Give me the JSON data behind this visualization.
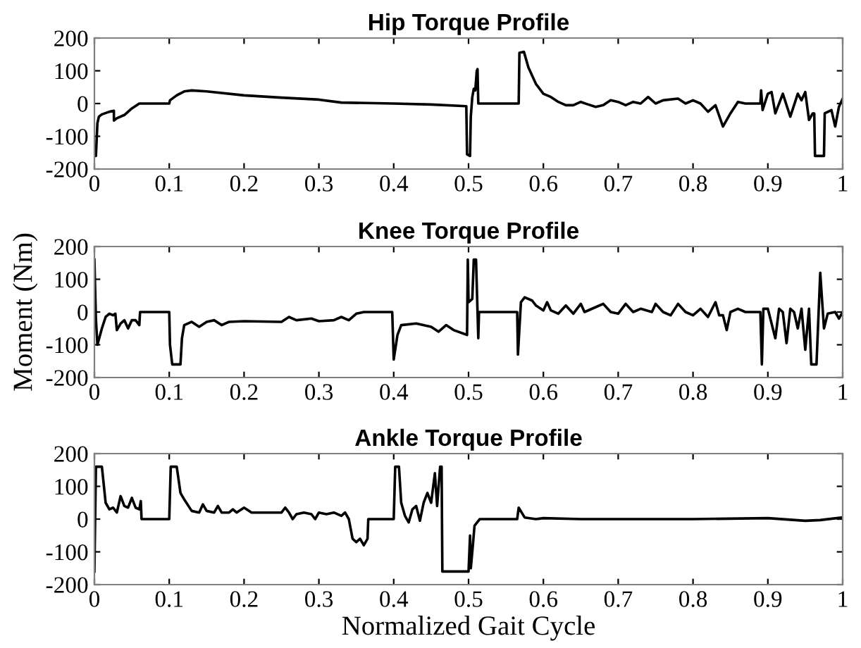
{
  "chart_data": [
    {
      "type": "line",
      "title": "Hip Torque Profile",
      "xlim": [
        0,
        1
      ],
      "xticks": [
        0,
        0.1,
        0.2,
        0.3,
        0.4,
        0.5,
        0.6,
        0.7,
        0.8,
        0.9,
        1
      ],
      "ylim": [
        -200,
        200
      ],
      "yticks": [
        -200,
        -100,
        0,
        100,
        200
      ],
      "grid": false,
      "marker": "none",
      "line_style": "solid",
      "series": [
        {
          "color": "#000000",
          "x": [
            0,
            0.002,
            0.004,
            0.006,
            0.01,
            0.02,
            0.026,
            0.0261,
            0.03,
            0.04,
            0.05,
            0.06,
            0.1,
            0.101,
            0.11,
            0.12,
            0.13,
            0.15,
            0.2,
            0.25,
            0.3,
            0.33,
            0.4,
            0.45,
            0.497,
            0.498,
            0.502,
            0.503,
            0.505,
            0.507,
            0.509,
            0.511,
            0.512,
            0.513,
            0.567,
            0.568,
            0.574,
            0.58,
            0.59,
            0.6,
            0.61,
            0.62,
            0.63,
            0.64,
            0.65,
            0.66,
            0.67,
            0.68,
            0.69,
            0.7,
            0.71,
            0.72,
            0.73,
            0.74,
            0.75,
            0.76,
            0.78,
            0.79,
            0.8,
            0.81,
            0.82,
            0.83,
            0.84,
            0.85,
            0.86,
            0.87,
            0.89,
            0.891,
            0.893,
            0.9,
            0.905,
            0.91,
            0.92,
            0.93,
            0.94,
            0.945,
            0.95,
            0.955,
            0.96,
            0.962,
            0.963,
            0.975,
            0.976,
            0.985,
            0.99,
            0.995,
            1
          ],
          "values": [
            -160,
            -160,
            -60,
            -40,
            -33,
            -25,
            -22,
            -52,
            -45,
            -35,
            -15,
            0,
            0,
            10,
            25,
            37,
            40,
            37,
            25,
            18,
            12,
            3,
            0,
            -3,
            -8,
            -155,
            -160,
            -40,
            20,
            45,
            40,
            100,
            105,
            0,
            0,
            155,
            158,
            110,
            60,
            30,
            20,
            5,
            -5,
            -5,
            5,
            -3,
            -10,
            -5,
            10,
            5,
            -5,
            5,
            0,
            20,
            0,
            10,
            15,
            0,
            10,
            0,
            -25,
            -5,
            -70,
            -30,
            5,
            0,
            0,
            40,
            -20,
            30,
            35,
            -30,
            30,
            -40,
            30,
            10,
            35,
            -50,
            -30,
            -30,
            -160,
            -160,
            -30,
            -20,
            -70,
            -10,
            15
          ]
        }
      ]
    },
    {
      "type": "line",
      "title": "Knee Torque Profile",
      "ylabel": "Moment (Nm)",
      "xlim": [
        0,
        1
      ],
      "xticks": [
        0,
        0.1,
        0.2,
        0.3,
        0.4,
        0.5,
        0.6,
        0.7,
        0.8,
        0.9,
        1
      ],
      "ylim": [
        -200,
        200
      ],
      "yticks": [
        -200,
        -100,
        0,
        100,
        200
      ],
      "grid": false,
      "marker": "none",
      "line_style": "solid",
      "series": [
        {
          "color": "#000000",
          "x": [
            0,
            0.002,
            0.004,
            0.01,
            0.015,
            0.02,
            0.025,
            0.028,
            0.03,
            0.035,
            0.04,
            0.045,
            0.05,
            0.055,
            0.06,
            0.061,
            0.1,
            0.101,
            0.104,
            0.115,
            0.117,
            0.12,
            0.13,
            0.14,
            0.15,
            0.16,
            0.17,
            0.18,
            0.2,
            0.25,
            0.26,
            0.27,
            0.29,
            0.3,
            0.32,
            0.33,
            0.34,
            0.35,
            0.36,
            0.398,
            0.4,
            0.405,
            0.41,
            0.43,
            0.45,
            0.46,
            0.47,
            0.48,
            0.498,
            0.499,
            0.5,
            0.505,
            0.507,
            0.51,
            0.513,
            0.514,
            0.565,
            0.566,
            0.57,
            0.575,
            0.585,
            0.59,
            0.6,
            0.605,
            0.61,
            0.62,
            0.63,
            0.64,
            0.65,
            0.655,
            0.67,
            0.68,
            0.69,
            0.7,
            0.71,
            0.72,
            0.73,
            0.745,
            0.75,
            0.76,
            0.77,
            0.78,
            0.79,
            0.8,
            0.81,
            0.82,
            0.83,
            0.835,
            0.84,
            0.845,
            0.85,
            0.86,
            0.87,
            0.89,
            0.892,
            0.894,
            0.9,
            0.91,
            0.915,
            0.92,
            0.925,
            0.93,
            0.935,
            0.94,
            0.945,
            0.95,
            0.955,
            0.958,
            0.965,
            0.97,
            0.975,
            0.98,
            0.99,
            0.995,
            1
          ],
          "values": [
            160,
            -20,
            -100,
            -50,
            -15,
            -5,
            -10,
            -5,
            -55,
            -35,
            -25,
            -50,
            -25,
            -25,
            -40,
            0,
            0,
            -100,
            -160,
            -160,
            -80,
            -40,
            -30,
            -45,
            -30,
            -25,
            -40,
            -30,
            -28,
            -30,
            -15,
            -25,
            -20,
            -28,
            -25,
            -15,
            -25,
            -5,
            0,
            0,
            -145,
            -70,
            -40,
            -35,
            -45,
            -60,
            -40,
            -55,
            -70,
            160,
            30,
            40,
            160,
            160,
            -80,
            0,
            0,
            -130,
            30,
            45,
            35,
            20,
            5,
            30,
            5,
            -5,
            20,
            -5,
            25,
            0,
            15,
            25,
            0,
            -5,
            25,
            0,
            10,
            0,
            25,
            0,
            -10,
            25,
            0,
            -10,
            10,
            -15,
            30,
            -10,
            -10,
            -55,
            0,
            10,
            0,
            0,
            -160,
            10,
            10,
            -80,
            10,
            0,
            -95,
            10,
            0,
            -50,
            10,
            -115,
            10,
            -160,
            -160,
            120,
            -50,
            -5,
            0,
            -20,
            0
          ]
        }
      ]
    },
    {
      "type": "line",
      "title": "Ankle Torque Profile",
      "xlabel": "Normalized Gait Cycle",
      "xlim": [
        0,
        1
      ],
      "xticks": [
        0,
        0.1,
        0.2,
        0.3,
        0.4,
        0.5,
        0.6,
        0.7,
        0.8,
        0.9,
        1
      ],
      "ylim": [
        -200,
        200
      ],
      "yticks": [
        -200,
        -100,
        0,
        100,
        200
      ],
      "grid": false,
      "marker": "none",
      "line_style": "solid",
      "series": [
        {
          "color": "#000000",
          "x": [
            0,
            0.002,
            0.01,
            0.015,
            0.02,
            0.025,
            0.03,
            0.035,
            0.04,
            0.045,
            0.05,
            0.055,
            0.06,
            0.062,
            0.063,
            0.1,
            0.102,
            0.11,
            0.115,
            0.12,
            0.13,
            0.14,
            0.145,
            0.15,
            0.16,
            0.165,
            0.17,
            0.18,
            0.185,
            0.19,
            0.2,
            0.21,
            0.25,
            0.255,
            0.26,
            0.265,
            0.27,
            0.28,
            0.29,
            0.295,
            0.3,
            0.31,
            0.32,
            0.33,
            0.335,
            0.34,
            0.345,
            0.35,
            0.355,
            0.36,
            0.365,
            0.366,
            0.4,
            0.402,
            0.407,
            0.41,
            0.415,
            0.42,
            0.425,
            0.43,
            0.435,
            0.44,
            0.445,
            0.45,
            0.455,
            0.458,
            0.462,
            0.464,
            0.465,
            0.5,
            0.502,
            0.503,
            0.505,
            0.508,
            0.515,
            0.565,
            0.567,
            0.575,
            0.59,
            0.6,
            0.65,
            0.7,
            0.8,
            0.9,
            0.95,
            0.97,
            1
          ],
          "values": [
            -160,
            160,
            160,
            50,
            30,
            35,
            20,
            70,
            40,
            35,
            65,
            35,
            30,
            55,
            0,
            0,
            160,
            160,
            80,
            60,
            25,
            20,
            45,
            25,
            20,
            40,
            20,
            20,
            30,
            20,
            35,
            20,
            20,
            35,
            20,
            0,
            15,
            20,
            15,
            0,
            20,
            15,
            20,
            10,
            20,
            0,
            -60,
            -70,
            -60,
            -80,
            -60,
            0,
            0,
            160,
            160,
            50,
            10,
            -10,
            30,
            40,
            -5,
            50,
            80,
            50,
            140,
            40,
            160,
            160,
            -160,
            -160,
            -50,
            -150,
            -100,
            -20,
            0,
            0,
            35,
            5,
            0,
            3,
            0,
            0,
            0,
            3,
            -5,
            -3,
            5
          ]
        }
      ]
    }
  ]
}
